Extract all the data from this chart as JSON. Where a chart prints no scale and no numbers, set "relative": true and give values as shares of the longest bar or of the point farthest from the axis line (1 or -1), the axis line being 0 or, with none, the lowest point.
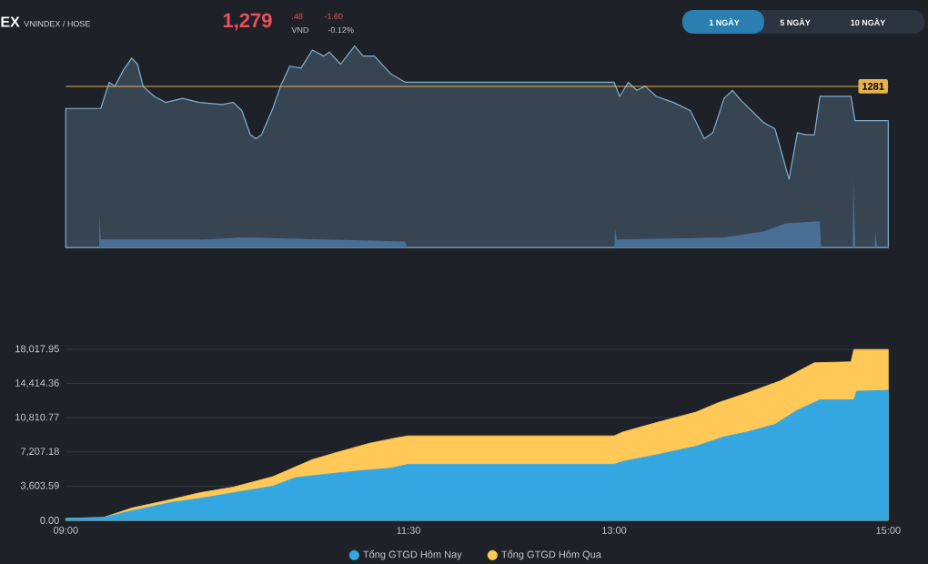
{
  "chart_data": [
    {
      "type": "area",
      "relative": true,
      "xlim": [
        9,
        15
      ],
      "annotations": [
        "EX",
        "VNINDEX / HOSE",
        "1,279",
        ".48",
        "VND",
        "-1.60",
        "-0.12%",
        "1 NGÀY",
        "5 NGÀY",
        "10 NGÀY",
        {
          "text": "1281",
          "y": 0.8
        }
      ],
      "ref_lines": [
        {
          "axis": "y",
          "value": 0.8,
          "color": "#e8b24a"
        }
      ],
      "series": [
        {
          "type": "area",
          "color": "#7fb0d0",
          "x": [
            9.0,
            9.255,
            9.317,
            9.358,
            9.42,
            9.481,
            9.523,
            9.564,
            9.646,
            9.728,
            9.852,
            9.975,
            10.14,
            10.222,
            10.284,
            10.346,
            10.387,
            10.428,
            10.51,
            10.572,
            10.634,
            10.716,
            10.798,
            10.881,
            10.922,
            11.004,
            11.107,
            11.169,
            11.251,
            11.374,
            11.477,
            13.0,
            13.041,
            13.103,
            13.165,
            13.226,
            13.309,
            13.432,
            13.556,
            13.658,
            13.72,
            13.802,
            13.864,
            13.926,
            14.091,
            14.173,
            14.276,
            14.337,
            14.399,
            14.461,
            14.502,
            14.728,
            14.757,
            15.0
          ],
          "values": [
            0.69,
            0.69,
            0.82,
            0.8,
            0.88,
            0.94,
            0.91,
            0.8,
            0.75,
            0.72,
            0.74,
            0.72,
            0.71,
            0.72,
            0.68,
            0.56,
            0.54,
            0.56,
            0.69,
            0.81,
            0.9,
            0.89,
            0.98,
            0.95,
            0.97,
            0.91,
            1.0,
            0.95,
            0.95,
            0.86,
            0.82,
            0.82,
            0.75,
            0.82,
            0.78,
            0.8,
            0.75,
            0.72,
            0.68,
            0.54,
            0.57,
            0.74,
            0.78,
            0.73,
            0.62,
            0.59,
            0.34,
            0.57,
            0.56,
            0.56,
            0.75,
            0.75,
            0.63,
            0.63
          ]
        },
        {
          "type": "area",
          "color": "#4a6f94",
          "x": [
            9.0,
            9.243,
            9.247,
            9.255,
            10.0,
            10.3,
            11.477,
            11.49,
            13.0,
            13.008,
            13.02,
            13.8,
            14.09,
            14.25,
            14.5,
            14.51,
            14.74,
            14.745,
            14.76,
            14.9,
            14.905,
            14.92
          ],
          "values": [
            0,
            0,
            0.16,
            0.04,
            0.04,
            0.05,
            0.03,
            0,
            0,
            0.09,
            0.04,
            0.05,
            0.08,
            0.12,
            0.13,
            0,
            0,
            0.34,
            0,
            0,
            0.08,
            0
          ]
        }
      ]
    },
    {
      "type": "area",
      "xlim": [
        9,
        15
      ],
      "ylim": [
        0,
        18017.95
      ],
      "grid": "y",
      "legend": "bottom",
      "xticks": [
        {
          "value": 9,
          "label": "09:00"
        },
        {
          "value": 11.5,
          "label": "11:30"
        },
        {
          "value": 13,
          "label": "13:00"
        },
        {
          "value": 15,
          "label": "15:00"
        }
      ],
      "yticks": [
        {
          "value": 0,
          "label": "0.00"
        },
        {
          "value": 3603.59,
          "label": "3,603.59"
        },
        {
          "value": 7207.18,
          "label": "7,207.18"
        },
        {
          "value": 10810.77,
          "label": "10,810.77"
        },
        {
          "value": 14414.36,
          "label": "14,414.36"
        },
        {
          "value": 18017.95,
          "label": "18,017.95"
        }
      ],
      "series": [
        {
          "name": "Tổng GTGD Hôm Nay",
          "color": "#35a7e0",
          "x": [
            9.0,
            9.276,
            9.481,
            9.77,
            9.975,
            10.222,
            10.51,
            10.675,
            10.922,
            11.127,
            11.374,
            11.498,
            13.0,
            13.062,
            13.309,
            13.597,
            13.802,
            13.967,
            14.173,
            14.337,
            14.502,
            14.749,
            14.769,
            15.0
          ],
          "values": [
            200,
            300,
            1000,
            1900,
            2300,
            2900,
            3600,
            4500,
            4900,
            5200,
            5500,
            5900,
            5900,
            6200,
            6900,
            7800,
            8800,
            9300,
            10100,
            11600,
            12700,
            12700,
            13600,
            13700
          ]
        },
        {
          "name": "Tổng GTGD Hôm Qua",
          "color": "#ffc857",
          "x": [
            9.0,
            9.276,
            9.481,
            9.77,
            9.975,
            10.222,
            10.51,
            10.798,
            10.963,
            11.21,
            11.416,
            11.498,
            13.0,
            13.062,
            13.309,
            13.597,
            13.762,
            13.967,
            14.214,
            14.46,
            14.728,
            14.749,
            15.0
          ],
          "values": [
            200,
            300,
            1300,
            2200,
            2900,
            3500,
            4600,
            6400,
            7100,
            8100,
            8700,
            8900,
            8900,
            9300,
            10300,
            11400,
            12400,
            13400,
            14700,
            16600,
            16700,
            18000,
            18000
          ]
        }
      ]
    }
  ]
}
